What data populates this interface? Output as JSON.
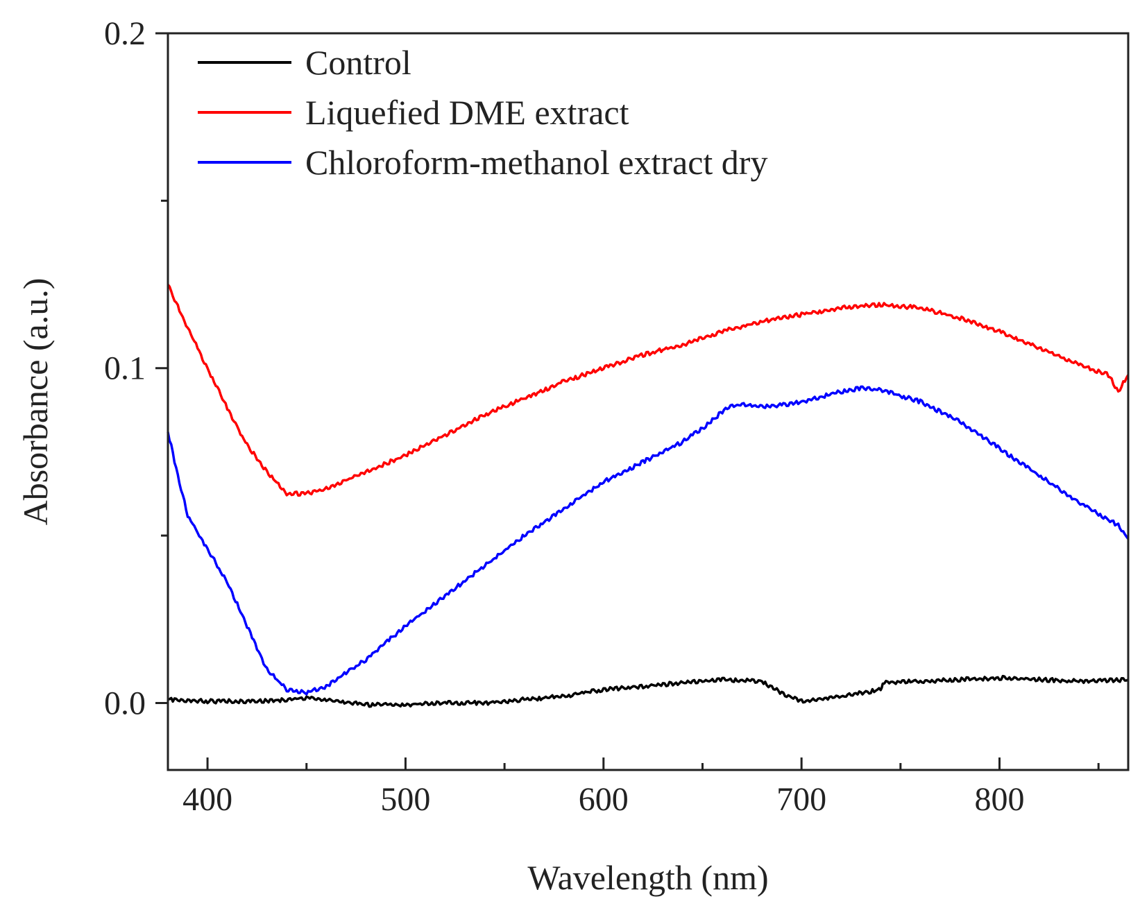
{
  "chart_data": {
    "type": "line",
    "title": "",
    "xlabel": "Wavelength (nm)",
    "ylabel": "Absorbance (a.u.)",
    "xlim": [
      380,
      865
    ],
    "ylim": [
      -0.02,
      0.2
    ],
    "x_ticks": [
      400,
      500,
      600,
      700,
      800
    ],
    "x_tick_labels": [
      "400",
      "500",
      "600",
      "700",
      "800"
    ],
    "x_minor_ticks": [
      450,
      550,
      650,
      750,
      850
    ],
    "y_ticks": [
      0.0,
      0.1,
      0.2
    ],
    "y_tick_labels": [
      "0.0",
      "0.1",
      "0.2"
    ],
    "y_minor_ticks": [
      0.05,
      0.15
    ],
    "grid": false,
    "legend_position": "top-left",
    "series": [
      {
        "name": "Control",
        "color": "#000000",
        "x": [
          380,
          400,
          420,
          440,
          450,
          460,
          480,
          500,
          520,
          540,
          560,
          580,
          600,
          620,
          640,
          660,
          680,
          690,
          700,
          720,
          740,
          741,
          760,
          780,
          800,
          820,
          840,
          865
        ],
        "y": [
          0.001,
          0.0005,
          0.0005,
          0.001,
          0.0015,
          0.001,
          -0.0005,
          -0.0005,
          0.0,
          0.0,
          0.001,
          0.002,
          0.004,
          0.005,
          0.006,
          0.007,
          0.0065,
          0.003,
          0.0005,
          0.002,
          0.004,
          0.006,
          0.0065,
          0.007,
          0.0075,
          0.007,
          0.0065,
          0.007
        ]
      },
      {
        "name": "Liquefied DME extract",
        "color": "#ff0000",
        "x": [
          380,
          390,
          400,
          410,
          420,
          430,
          440,
          450,
          460,
          480,
          500,
          520,
          540,
          560,
          580,
          600,
          620,
          640,
          660,
          680,
          700,
          720,
          740,
          760,
          780,
          800,
          820,
          840,
          855,
          860,
          865
        ],
        "y": [
          0.125,
          0.112,
          0.1,
          0.088,
          0.077,
          0.069,
          0.0625,
          0.0625,
          0.064,
          0.069,
          0.074,
          0.08,
          0.086,
          0.091,
          0.096,
          0.1,
          0.104,
          0.107,
          0.111,
          0.114,
          0.116,
          0.118,
          0.119,
          0.118,
          0.115,
          0.111,
          0.106,
          0.101,
          0.098,
          0.093,
          0.098
        ]
      },
      {
        "name": "Chloroform-methanol extract dry",
        "color": "#0000ff",
        "x": [
          380,
          385,
          390,
          400,
          410,
          420,
          430,
          440,
          450,
          460,
          470,
          480,
          500,
          520,
          540,
          560,
          580,
          600,
          620,
          640,
          650,
          660,
          665,
          670,
          680,
          690,
          700,
          720,
          730,
          740,
          760,
          780,
          800,
          820,
          840,
          860,
          865
        ],
        "y": [
          0.081,
          0.068,
          0.056,
          0.046,
          0.036,
          0.023,
          0.01,
          0.004,
          0.003,
          0.005,
          0.009,
          0.013,
          0.023,
          0.032,
          0.041,
          0.05,
          0.058,
          0.066,
          0.072,
          0.078,
          0.082,
          0.087,
          0.089,
          0.089,
          0.0885,
          0.089,
          0.09,
          0.093,
          0.094,
          0.0935,
          0.09,
          0.084,
          0.076,
          0.068,
          0.06,
          0.053,
          0.049
        ]
      }
    ]
  }
}
